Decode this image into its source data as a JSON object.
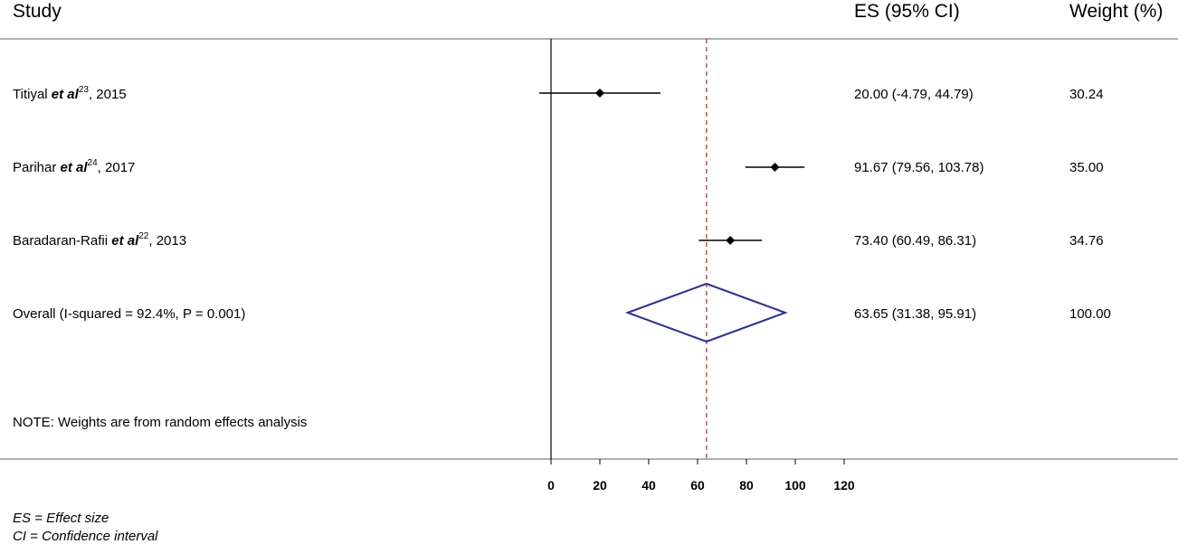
{
  "chart_data": {
    "type": "forest",
    "headers": {
      "study": "Study",
      "es": "ES (95% CI)",
      "weight": "Weight (%)"
    },
    "studies": [
      {
        "author": "Titiyal",
        "etal": "et al",
        "ref": "23",
        "year": ", 2015",
        "es": 20.0,
        "ci_low": -4.79,
        "ci_high": 44.79,
        "es_label": "20.00 (-4.79, 44.79)",
        "weight": "30.24"
      },
      {
        "author": "Parihar",
        "etal": "et al",
        "ref": "24",
        "year": ", 2017",
        "es": 91.67,
        "ci_low": 79.56,
        "ci_high": 103.78,
        "es_label": "91.67 (79.56, 103.78)",
        "weight": "35.00"
      },
      {
        "author": "Baradaran-Rafii",
        "etal": "et al",
        "ref": "22",
        "year": ", 2013",
        "es": 73.4,
        "ci_low": 60.49,
        "ci_high": 86.31,
        "es_label": "73.40 (60.49, 86.31)",
        "weight": "34.76"
      }
    ],
    "overall": {
      "label": "Overall  (I-squared = 92.4%, P = 0.001)",
      "es": 63.65,
      "ci_low": 31.38,
      "ci_high": 95.91,
      "es_label": "63.65 (31.38, 95.91)",
      "weight": "100.00"
    },
    "note": "NOTE: Weights are from random effects analysis",
    "x_ticks": [
      0,
      20,
      40,
      60,
      80,
      100,
      120
    ],
    "xlim": [
      0,
      120
    ],
    "footnotes": [
      "ES = Effect size",
      "CI = Confidence interval"
    ],
    "colors": {
      "diamond": "#2e3192",
      "reference_line": "#a0403f",
      "marker": "#000000"
    }
  }
}
